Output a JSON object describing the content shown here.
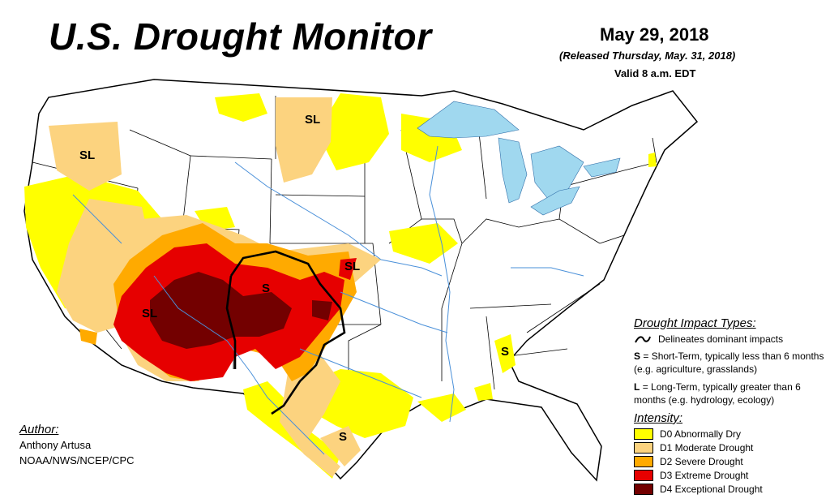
{
  "header": {
    "title": "U.S. Drought Monitor",
    "date": "May 29, 2018",
    "released": "(Released Thursday, May. 31, 2018)",
    "valid": "Valid 8 a.m. EDT"
  },
  "author": {
    "label": "Author:",
    "name": "Anthony Artusa",
    "org": "NOAA/NWS/NCEP/CPC"
  },
  "legend": {
    "impact_heading": "Drought Impact Types:",
    "delineates": "Delineates dominant impacts",
    "short_key": "S",
    "short_text": "= Short-Term, typically less than 6 months (e.g. agriculture, grasslands)",
    "long_key": "L",
    "long_text": "= Long-Term, typically greater than 6 months (e.g. hydrology, ecology)",
    "intensity_heading": "Intensity:",
    "items": [
      {
        "label": "D0 Abnormally Dry",
        "color": "#ffff00"
      },
      {
        "label": "D1 Moderate Drought",
        "color": "#fcd37f"
      },
      {
        "label": "D2 Severe Drought",
        "color": "#ffaa00"
      },
      {
        "label": "D3 Extreme Drought",
        "color": "#e60000"
      },
      {
        "label": "D4 Exceptional Drought",
        "color": "#730000"
      }
    ]
  },
  "map_labels": {
    "sl_oregon": "SL",
    "sl_dakota": "SL",
    "sl_arizona": "SL",
    "s_panhandle": "S",
    "sl_kansas": "SL",
    "s_alabama": "S",
    "s_texas": "S"
  },
  "colors": {
    "water": "#a0d8ef",
    "river": "#4a90d9",
    "outline": "#000000"
  }
}
